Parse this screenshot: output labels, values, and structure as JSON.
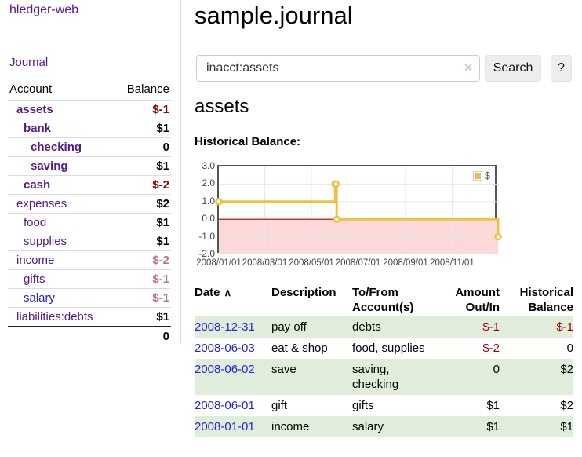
{
  "app": {
    "title": "hledger-web"
  },
  "sidebar": {
    "journal_label": "Journal",
    "accounts_header": {
      "account": "Account",
      "balance": "Balance"
    },
    "accounts": [
      {
        "name": "assets",
        "balance": "$-1"
      },
      {
        "name": "bank",
        "balance": "$1"
      },
      {
        "name": "checking",
        "balance": "0"
      },
      {
        "name": "saving",
        "balance": "$1"
      },
      {
        "name": "cash",
        "balance": "$-2"
      },
      {
        "name": "expenses",
        "balance": "$2"
      },
      {
        "name": "food",
        "balance": "$1"
      },
      {
        "name": "supplies",
        "balance": "$1"
      },
      {
        "name": "income",
        "balance": "$-2"
      },
      {
        "name": "gifts",
        "balance": "$-1"
      },
      {
        "name": "salary",
        "balance": "$-1"
      },
      {
        "name": "liabilities:debts",
        "balance": "$1"
      }
    ],
    "total": "0"
  },
  "main": {
    "title": "sample.journal",
    "search": {
      "value": "inacct:assets",
      "clear_icon": "✕",
      "search_label": "Search",
      "help_label": "?"
    },
    "account_heading": "assets",
    "chart_label": "Historical Balance:"
  },
  "register": {
    "sort_asc_icon": "∧",
    "headers": {
      "date": "Date",
      "description": "Description",
      "accounts": "To/From Account(s)",
      "amount": "Amount Out/In",
      "balance": "Historical Balance"
    },
    "rows": [
      {
        "date": "2008-12-31",
        "description": "pay off",
        "accounts": "debts",
        "amount": "$-1",
        "balance": "$-1"
      },
      {
        "date": "2008-06-03",
        "description": "eat & shop",
        "accounts": "food, supplies",
        "amount": "$-2",
        "balance": "0"
      },
      {
        "date": "2008-06-02",
        "description": "save",
        "accounts": "saving, checking",
        "amount": "0",
        "balance": "$2"
      },
      {
        "date": "2008-06-01",
        "description": "gift",
        "accounts": "gifts",
        "amount": "$1",
        "balance": "$2"
      },
      {
        "date": "2008-01-01",
        "description": "income",
        "accounts": "salary",
        "amount": "$1",
        "balance": "$1"
      }
    ]
  },
  "chart_data": {
    "type": "line",
    "title": "Historical Balance:",
    "series": [
      {
        "name": "$",
        "color": "#edc240",
        "steps": true,
        "points": [
          {
            "x": "2008/01/01",
            "y": 1
          },
          {
            "x": "2008/06/01",
            "y": 2
          },
          {
            "x": "2008/06/02",
            "y": 2
          },
          {
            "x": "2008/06/03",
            "y": 0
          },
          {
            "x": "2008/12/31",
            "y": -1
          }
        ]
      }
    ],
    "xticks": [
      "2008/01/01",
      "2008/03/01",
      "2008/05/01",
      "2008/07/01",
      "2008/09/01",
      "2008/11/01"
    ],
    "yticks": [
      "3.0",
      "2.0",
      "1.0",
      "0.0",
      "-1.0",
      "-2.0"
    ],
    "xlim": [
      "2008/01/01",
      "2008/12/31"
    ],
    "ylim": [
      -2,
      3
    ],
    "grid": true,
    "legend_position": "top-right",
    "negative_fill": "#fbd9d9",
    "zero_line_color": "#aa0000",
    "grid_color": "#e7e7e7"
  },
  "colors": {
    "accent_purple": "#551a8b",
    "link_blue": "#2323dd",
    "negative_red": "#990000",
    "negative_soft": "#c0767e",
    "row_stripe_green": "#e0edda",
    "series_gold": "#edc240"
  }
}
